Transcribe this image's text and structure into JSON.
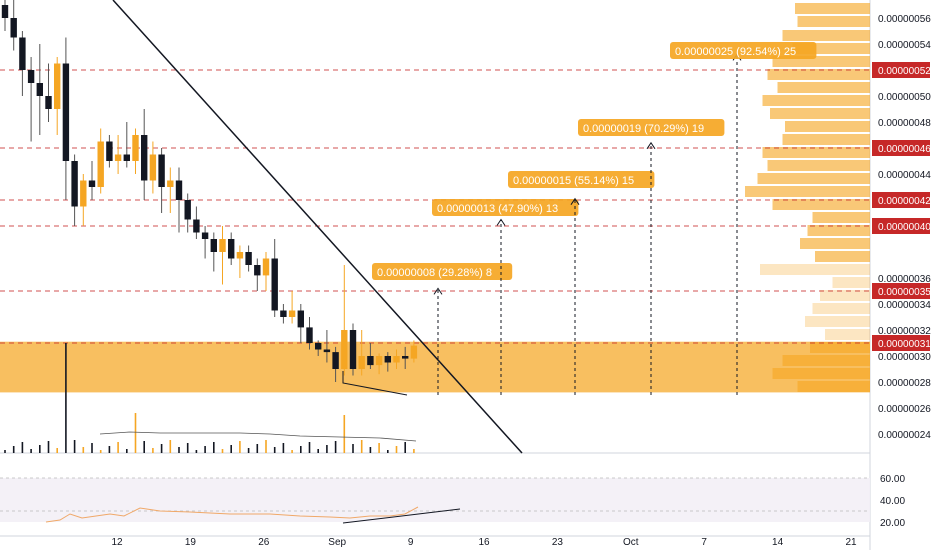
{
  "chart_data": {
    "type": "candlestick",
    "price_axis": {
      "ticks": [
        "0.00000056",
        "0.00000054",
        "0.00000050",
        "0.00000048",
        "0.00000044",
        "0.00000036",
        "0.00000034",
        "0.00000032",
        "0.00000030",
        "0.00000028",
        "0.00000026",
        "0.00000024"
      ],
      "highlighted": [
        {
          "label": "0.00000052",
          "color": "#c62828"
        },
        {
          "label": "0.00000046",
          "color": "#c62828"
        },
        {
          "label": "0.00000042",
          "color": "#c62828"
        },
        {
          "label": "0.00000040",
          "color": "#c62828"
        },
        {
          "label": "0.00000035",
          "color": "#c62828"
        },
        {
          "label": "0.00000031",
          "color": "#c62828"
        }
      ],
      "ylim": [
        2.31e-07,
        5.7e-07
      ]
    },
    "time_axis": {
      "labels": [
        "12",
        "19",
        "26",
        "Sep",
        "9",
        "16",
        "23",
        "Oct",
        "7",
        "14",
        "21"
      ]
    },
    "candles": [
      {
        "o": 5.7e-07,
        "h": 5.8e-07,
        "l": 5.5e-07,
        "c": 5.6e-07
      },
      {
        "o": 5.6e-07,
        "h": 5.8e-07,
        "l": 5.35e-07,
        "c": 5.45e-07
      },
      {
        "o": 5.45e-07,
        "h": 5.5e-07,
        "l": 5e-07,
        "c": 5.2e-07
      },
      {
        "o": 5.2e-07,
        "h": 5.3e-07,
        "l": 4.65e-07,
        "c": 5.1e-07
      },
      {
        "o": 5.1e-07,
        "h": 5.4e-07,
        "l": 4.7e-07,
        "c": 5e-07
      },
      {
        "o": 5e-07,
        "h": 5.25e-07,
        "l": 4.8e-07,
        "c": 4.9e-07
      },
      {
        "o": 4.9e-07,
        "h": 5.3e-07,
        "l": 4.7e-07,
        "c": 5.25e-07
      },
      {
        "o": 5.25e-07,
        "h": 5.45e-07,
        "l": 4.2e-07,
        "c": 4.5e-07
      },
      {
        "o": 4.5e-07,
        "h": 4.55e-07,
        "l": 4e-07,
        "c": 4.15e-07
      },
      {
        "o": 4.15e-07,
        "h": 4.4e-07,
        "l": 4e-07,
        "c": 4.35e-07
      },
      {
        "o": 4.35e-07,
        "h": 4.5e-07,
        "l": 4.2e-07,
        "c": 4.3e-07
      },
      {
        "o": 4.3e-07,
        "h": 4.75e-07,
        "l": 4.25e-07,
        "c": 4.65e-07
      },
      {
        "o": 4.65e-07,
        "h": 4.7e-07,
        "l": 4.45e-07,
        "c": 4.5e-07
      },
      {
        "o": 4.5e-07,
        "h": 4.7e-07,
        "l": 4.4e-07,
        "c": 4.55e-07
      },
      {
        "o": 4.55e-07,
        "h": 4.8e-07,
        "l": 4.45e-07,
        "c": 4.5e-07
      },
      {
        "o": 4.5e-07,
        "h": 4.75e-07,
        "l": 4.4e-07,
        "c": 4.7e-07
      },
      {
        "o": 4.7e-07,
        "h": 4.9e-07,
        "l": 4.2e-07,
        "c": 4.35e-07
      },
      {
        "o": 4.35e-07,
        "h": 4.65e-07,
        "l": 4.25e-07,
        "c": 4.55e-07
      },
      {
        "o": 4.55e-07,
        "h": 4.6e-07,
        "l": 4.1e-07,
        "c": 4.3e-07
      },
      {
        "o": 4.3e-07,
        "h": 4.45e-07,
        "l": 4.1e-07,
        "c": 4.35e-07
      },
      {
        "o": 4.35e-07,
        "h": 4.45e-07,
        "l": 3.95e-07,
        "c": 4.2e-07
      },
      {
        "o": 4.2e-07,
        "h": 4.25e-07,
        "l": 3.95e-07,
        "c": 4.05e-07
      },
      {
        "o": 4.05e-07,
        "h": 4.15e-07,
        "l": 3.9e-07,
        "c": 3.95e-07
      },
      {
        "o": 3.95e-07,
        "h": 4e-07,
        "l": 3.75e-07,
        "c": 3.9e-07
      },
      {
        "o": 3.9e-07,
        "h": 3.95e-07,
        "l": 3.65e-07,
        "c": 3.8e-07
      },
      {
        "o": 3.8e-07,
        "h": 4e-07,
        "l": 3.55e-07,
        "c": 3.9e-07
      },
      {
        "o": 3.9e-07,
        "h": 3.95e-07,
        "l": 3.7e-07,
        "c": 3.75e-07
      },
      {
        "o": 3.75e-07,
        "h": 3.85e-07,
        "l": 3.6e-07,
        "c": 3.8e-07
      },
      {
        "o": 3.8e-07,
        "h": 3.85e-07,
        "l": 3.65e-07,
        "c": 3.7e-07
      },
      {
        "o": 3.7e-07,
        "h": 3.75e-07,
        "l": 3.5e-07,
        "c": 3.62e-07
      },
      {
        "o": 3.62e-07,
        "h": 3.8e-07,
        "l": 3.5e-07,
        "c": 3.75e-07
      },
      {
        "o": 3.75e-07,
        "h": 3.9e-07,
        "l": 3.3e-07,
        "c": 3.35e-07
      },
      {
        "o": 3.35e-07,
        "h": 3.4e-07,
        "l": 3.25e-07,
        "c": 3.3e-07
      },
      {
        "o": 3.3e-07,
        "h": 3.5e-07,
        "l": 3.25e-07,
        "c": 3.35e-07
      },
      {
        "o": 3.35e-07,
        "h": 3.4e-07,
        "l": 3.1e-07,
        "c": 3.22e-07
      },
      {
        "o": 3.22e-07,
        "h": 3.3e-07,
        "l": 3.05e-07,
        "c": 3.1e-07
      },
      {
        "o": 3.1e-07,
        "h": 3.12e-07,
        "l": 3e-07,
        "c": 3.05e-07
      },
      {
        "o": 3.05e-07,
        "h": 3.2e-07,
        "l": 2.95e-07,
        "c": 3.03e-07
      },
      {
        "o": 3.03e-07,
        "h": 3.07e-07,
        "l": 2.8e-07,
        "c": 2.9e-07
      },
      {
        "o": 2.9e-07,
        "h": 3.7e-07,
        "l": 2.85e-07,
        "c": 3.2e-07
      },
      {
        "o": 3.2e-07,
        "h": 3.25e-07,
        "l": 2.85e-07,
        "c": 2.9e-07
      },
      {
        "o": 2.9e-07,
        "h": 3.2e-07,
        "l": 2.85e-07,
        "c": 3e-07
      },
      {
        "o": 3e-07,
        "h": 3.1e-07,
        "l": 2.9e-07,
        "c": 2.93e-07
      },
      {
        "o": 2.93e-07,
        "h": 3.02e-07,
        "l": 2.86e-07,
        "c": 3e-07
      },
      {
        "o": 3e-07,
        "h": 3.03e-07,
        "l": 2.88e-07,
        "c": 2.95e-07
      },
      {
        "o": 2.95e-07,
        "h": 3.05e-07,
        "l": 2.9e-07,
        "c": 3e-07
      },
      {
        "o": 3e-07,
        "h": 3.07e-07,
        "l": 2.9e-07,
        "c": 2.98e-07
      },
      {
        "o": 2.98e-07,
        "h": 3.12e-07,
        "l": 2.95e-07,
        "c": 3.08e-07
      }
    ],
    "targets": [
      {
        "label": "0.00000008 (29.28%) 8"
      },
      {
        "label": "0.00000013 (47.90%) 13"
      },
      {
        "label": "0.00000015 (55.14%) 15"
      },
      {
        "label": "0.00000019 (70.29%) 19"
      },
      {
        "label": "0.00000025 (92.54%) 25"
      }
    ],
    "rsi": {
      "ticks": [
        "60.00",
        "40.00",
        "20.00"
      ]
    },
    "colors": {
      "up": "#f5a623",
      "down": "#131722",
      "level": "#c62828",
      "band": "#f5a623",
      "label_bg": "#f5a623"
    }
  }
}
